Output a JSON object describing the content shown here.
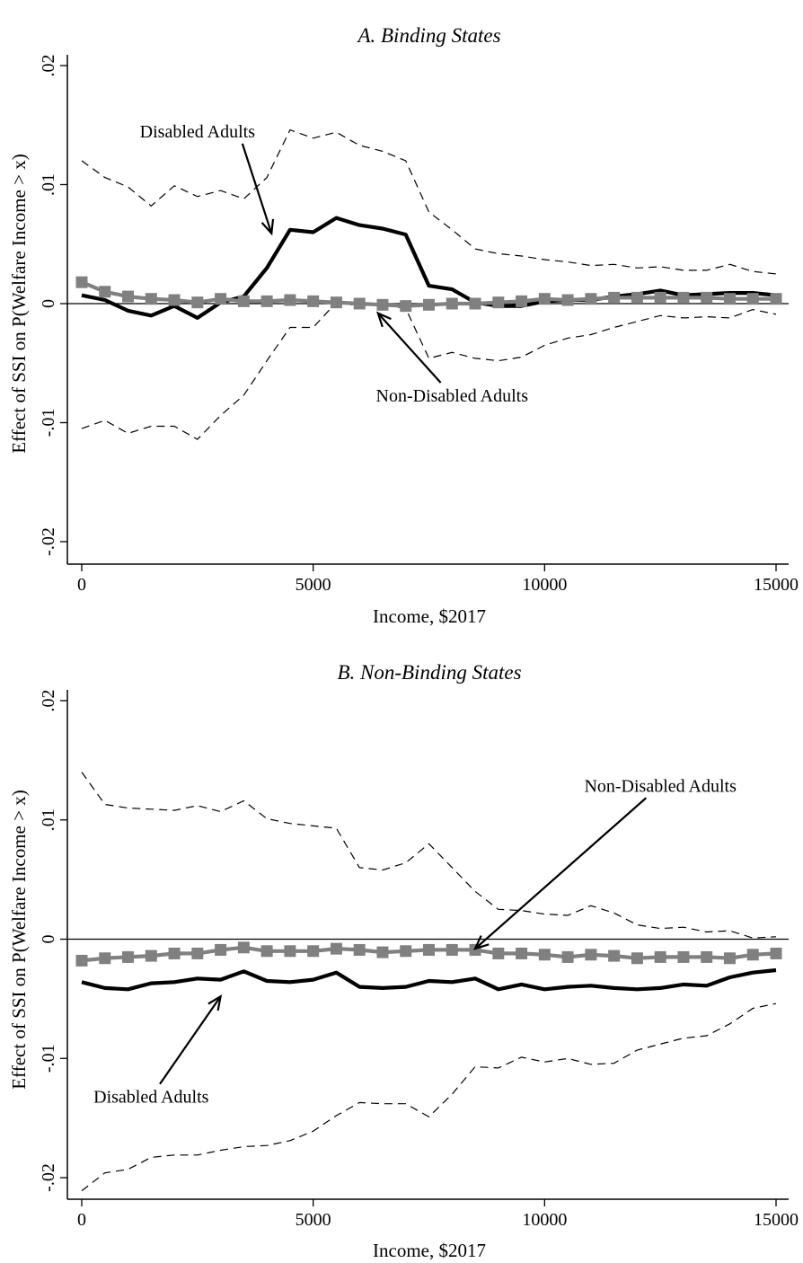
{
  "chart_data": [
    {
      "type": "line",
      "title": "A. Binding States",
      "xlabel": "Income, $2017",
      "ylabel": "Effect of SSI on P(Welfare Income > x)",
      "xlim": [
        0,
        15000
      ],
      "ylim": [
        -0.02,
        0.02
      ],
      "x_ticks": [
        "0",
        "5000",
        "10000",
        "15000"
      ],
      "y_ticks": [
        "-.02",
        "-.01",
        "0",
        ".01",
        ".02"
      ],
      "x_tick_values": [
        0,
        5000,
        10000,
        15000
      ],
      "y_tick_values": [
        -0.02,
        -0.01,
        0,
        0.01,
        0.02
      ],
      "reference_line_y": 0,
      "grid": false,
      "x": [
        0,
        500,
        1000,
        1500,
        2000,
        2500,
        3000,
        3500,
        4000,
        4500,
        5000,
        5500,
        6000,
        6500,
        7000,
        7500,
        8000,
        8500,
        9000,
        9500,
        10000,
        10500,
        11000,
        11500,
        12000,
        12500,
        13000,
        13500,
        14000,
        14500,
        15000
      ],
      "series": [
        {
          "role": "disabled_estimate",
          "color": "#000000",
          "values": [
            0.0007,
            0.0003,
            -0.0006,
            -0.001,
            -0.0002,
            -0.0012,
            0.0001,
            0.0006,
            0.003,
            0.0062,
            0.006,
            0.0072,
            0.0066,
            0.0063,
            0.0058,
            0.0015,
            0.0012,
            0.0001,
            -0.0002,
            -0.0002,
            0.0002,
            0.0003,
            0.0003,
            0.0006,
            0.0008,
            0.0011,
            0.0007,
            0.0008,
            0.0009,
            0.0009,
            0.0007
          ]
        },
        {
          "role": "ci_upper",
          "color": "#000000",
          "values": [
            0.012,
            0.0106,
            0.0098,
            0.0082,
            0.0099,
            0.009,
            0.0095,
            0.0088,
            0.0106,
            0.0146,
            0.0139,
            0.0144,
            0.0133,
            0.0128,
            0.012,
            0.0077,
            0.0062,
            0.0046,
            0.0042,
            0.004,
            0.0037,
            0.0035,
            0.0032,
            0.0033,
            0.003,
            0.0031,
            0.0028,
            0.0028,
            0.0033,
            0.0027,
            0.0025
          ]
        },
        {
          "role": "ci_lower",
          "color": "#000000",
          "values": [
            -0.0105,
            -0.0098,
            -0.0109,
            -0.0103,
            -0.0103,
            -0.0114,
            -0.0094,
            -0.0077,
            -0.0048,
            -0.002,
            -0.002,
            0.0001,
            -0.0002,
            -0.0001,
            -0.0004,
            -0.0046,
            -0.0041,
            -0.0046,
            -0.0048,
            -0.0045,
            -0.0035,
            -0.0029,
            -0.0026,
            -0.002,
            -0.0015,
            -0.001,
            -0.0012,
            -0.0011,
            -0.0012,
            -0.0005,
            -0.0009
          ]
        },
        {
          "role": "nondisabled_estimate",
          "color": "#808080",
          "values": [
            0.0018,
            0.001,
            0.0006,
            0.0004,
            0.0003,
            0.0001,
            0.0004,
            0.0002,
            0.0002,
            0.0003,
            0.0002,
            0.0001,
            0.0,
            -0.0001,
            -0.0002,
            -0.0001,
            0.0,
            0.0,
            0.0001,
            0.0002,
            0.0004,
            0.0003,
            0.0004,
            0.0005,
            0.0005,
            0.0005,
            0.0005,
            0.0005,
            0.0004,
            0.0004,
            0.0004
          ]
        }
      ],
      "annotations": [
        {
          "text": "Disabled Adults",
          "x": 2500,
          "y": 0.0145,
          "arrow_to": [
            4100,
            0.0059
          ]
        },
        {
          "text": "Non-Disabled Adults",
          "x": 8000,
          "y": -0.0077,
          "arrow_to": [
            6400,
            -0.0008
          ]
        }
      ]
    },
    {
      "type": "line",
      "title": "B. Non-Binding States",
      "xlabel": "Income, $2017",
      "ylabel": "Effect of SSI on P(Welfare Income > x)",
      "xlim": [
        0,
        15000
      ],
      "ylim": [
        -0.02,
        0.02
      ],
      "x_ticks": [
        "0",
        "5000",
        "10000",
        "15000"
      ],
      "y_ticks": [
        "-.02",
        "-.01",
        "0",
        ".01",
        ".02"
      ],
      "x_tick_values": [
        0,
        5000,
        10000,
        15000
      ],
      "y_tick_values": [
        -0.02,
        -0.01,
        0,
        0.01,
        0.02
      ],
      "reference_line_y": 0,
      "grid": false,
      "x": [
        0,
        500,
        1000,
        1500,
        2000,
        2500,
        3000,
        3500,
        4000,
        4500,
        5000,
        5500,
        6000,
        6500,
        7000,
        7500,
        8000,
        8500,
        9000,
        9500,
        10000,
        10500,
        11000,
        11500,
        12000,
        12500,
        13000,
        13500,
        14000,
        14500,
        15000
      ],
      "series": [
        {
          "role": "disabled_estimate",
          "color": "#000000",
          "values": [
            -0.0036,
            -0.0041,
            -0.0042,
            -0.0037,
            -0.0036,
            -0.0033,
            -0.0034,
            -0.0027,
            -0.0035,
            -0.0036,
            -0.0034,
            -0.0028,
            -0.004,
            -0.0041,
            -0.004,
            -0.0035,
            -0.0036,
            -0.0033,
            -0.0042,
            -0.0038,
            -0.0042,
            -0.004,
            -0.0039,
            -0.0041,
            -0.0042,
            -0.0041,
            -0.0038,
            -0.0039,
            -0.0032,
            -0.0028,
            -0.0026
          ]
        },
        {
          "role": "ci_upper",
          "color": "#000000",
          "values": [
            0.014,
            0.0113,
            0.011,
            0.0109,
            0.0108,
            0.0112,
            0.0107,
            0.0116,
            0.0101,
            0.0097,
            0.0095,
            0.0093,
            0.006,
            0.0058,
            0.0064,
            0.008,
            0.006,
            0.004,
            0.0025,
            0.0024,
            0.0021,
            0.002,
            0.0028,
            0.0022,
            0.0012,
            0.0009,
            0.001,
            0.0006,
            0.0007,
            0.0001,
            0.0002
          ]
        },
        {
          "role": "ci_lower",
          "color": "#000000",
          "values": [
            -0.0211,
            -0.0196,
            -0.0193,
            -0.0183,
            -0.0181,
            -0.0181,
            -0.0177,
            -0.0174,
            -0.0173,
            -0.0169,
            -0.0161,
            -0.0148,
            -0.0137,
            -0.0138,
            -0.0138,
            -0.0149,
            -0.013,
            -0.0107,
            -0.0108,
            -0.0099,
            -0.0103,
            -0.01,
            -0.0105,
            -0.0104,
            -0.0093,
            -0.0088,
            -0.0083,
            -0.0081,
            -0.0071,
            -0.0058,
            -0.0054
          ]
        },
        {
          "role": "nondisabled_estimate",
          "color": "#808080",
          "values": [
            -0.0018,
            -0.0016,
            -0.0015,
            -0.0014,
            -0.0012,
            -0.0012,
            -0.0009,
            -0.0007,
            -0.001,
            -0.001,
            -0.001,
            -0.0008,
            -0.0009,
            -0.0011,
            -0.001,
            -0.0009,
            -0.0009,
            -0.0009,
            -0.0012,
            -0.0012,
            -0.0013,
            -0.0015,
            -0.0013,
            -0.0014,
            -0.0016,
            -0.0015,
            -0.0015,
            -0.0015,
            -0.0016,
            -0.0013,
            -0.0012
          ]
        }
      ],
      "annotations": [
        {
          "text": "Non-Disabled Adults",
          "x": 12500,
          "y": 0.0129,
          "arrow_to": [
            8500,
            -0.0008
          ]
        },
        {
          "text": "Disabled Adults",
          "x": 1500,
          "y": -0.0132,
          "arrow_to": [
            3000,
            -0.0048
          ]
        }
      ]
    }
  ]
}
